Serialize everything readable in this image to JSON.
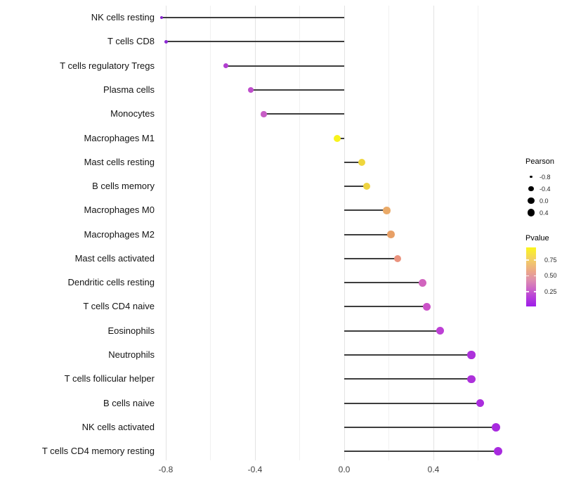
{
  "chart_data": {
    "type": "scatter",
    "variant": "lollipop",
    "title": "",
    "xlabel": "",
    "ylabel": "",
    "grid": true,
    "legend_position": "right",
    "x_axis": {
      "major_ticks": [
        -0.8,
        -0.4,
        0.0,
        0.4
      ],
      "major_tick_labels": [
        "-0.8",
        "-0.4",
        "0.0",
        "0.4"
      ],
      "minor_ticks": [
        -0.6,
        -0.2,
        0.2,
        0.6
      ],
      "range": [
        -0.85,
        0.72
      ]
    },
    "rows": [
      {
        "category": "NK cells resting",
        "pearson": -0.82,
        "pvalue": 0.01,
        "color": "#8826CF",
        "diameter": 4
      },
      {
        "category": "T cells CD8",
        "pearson": -0.8,
        "pvalue": 0.02,
        "color": "#8C2AD3",
        "diameter": 5
      },
      {
        "category": "T cells regulatory  Tregs",
        "pearson": -0.53,
        "pvalue": 0.12,
        "color": "#B13DD0",
        "diameter": 7.5
      },
      {
        "category": "Plasma cells",
        "pearson": -0.42,
        "pvalue": 0.17,
        "color": "#BF4ECC",
        "diameter": 8
      },
      {
        "category": "Monocytes",
        "pearson": -0.36,
        "pvalue": 0.22,
        "color": "#C75DC5",
        "diameter": 8.5
      },
      {
        "category": "Macrophages M1",
        "pearson": -0.03,
        "pvalue": 0.93,
        "color": "#F8F31D",
        "diameter": 10
      },
      {
        "category": "Mast cells resting",
        "pearson": 0.08,
        "pvalue": 0.82,
        "color": "#EFD63C",
        "diameter": 10
      },
      {
        "category": "B cells memory",
        "pearson": 0.1,
        "pvalue": 0.81,
        "color": "#EED341",
        "diameter": 10.5
      },
      {
        "category": "Macrophages M0",
        "pearson": 0.19,
        "pvalue": 0.62,
        "color": "#EAAA68",
        "diameter": 10.5
      },
      {
        "category": "Macrophages M2",
        "pearson": 0.21,
        "pvalue": 0.6,
        "color": "#E8A066",
        "diameter": 10.5
      },
      {
        "category": "Mast cells activated",
        "pearson": 0.24,
        "pvalue": 0.55,
        "color": "#EA937E",
        "diameter": 10.5
      },
      {
        "category": "Dendritic cells resting",
        "pearson": 0.35,
        "pvalue": 0.28,
        "color": "#D164BE",
        "diameter": 11
      },
      {
        "category": "T cells CD4 naive",
        "pearson": 0.37,
        "pvalue": 0.24,
        "color": "#CB52C8",
        "diameter": 11
      },
      {
        "category": "Eosinophils",
        "pearson": 0.43,
        "pvalue": 0.15,
        "color": "#BD40D5",
        "diameter": 11.5
      },
      {
        "category": "Neutrophils",
        "pearson": 0.57,
        "pvalue": 0.08,
        "color": "#AD31DB",
        "diameter": 11.5
      },
      {
        "category": "T cells follicular helper",
        "pearson": 0.57,
        "pvalue": 0.08,
        "color": "#AD31DB",
        "diameter": 11.5
      },
      {
        "category": "B cells naive",
        "pearson": 0.61,
        "pvalue": 0.06,
        "color": "#AA2DDD",
        "diameter": 11.5
      },
      {
        "category": "NK cells activated",
        "pearson": 0.68,
        "pvalue": 0.04,
        "color": "#A82ADF",
        "diameter": 12.5
      },
      {
        "category": "T cells CD4 memory resting",
        "pearson": 0.69,
        "pvalue": 0.04,
        "color": "#A82ADF",
        "diameter": 12.5
      }
    ]
  },
  "legends": {
    "pearson": {
      "title": "Pearson",
      "dot_color": "#000000",
      "entries": [
        {
          "label": "-0.8",
          "diameter": 3.5
        },
        {
          "label": "-0.4",
          "diameter": 7.5
        },
        {
          "label": "0.0",
          "diameter": 9.5
        },
        {
          "label": "0.4",
          "diameter": 10.5
        }
      ]
    },
    "pvalue": {
      "title": "Pvalue",
      "tick_labels": [
        "0.75",
        "0.50",
        "0.25"
      ],
      "tick_values": [
        0.75,
        0.5,
        0.25
      ],
      "range_top": 0.95,
      "range_bottom": 0.02,
      "gradient_stops": [
        "#FBF51C 0%",
        "#F3D163 20%",
        "#ECA887 40%",
        "#DE8FAE 55%",
        "#CD67C6 70%",
        "#B53BDB 85%",
        "#9D1EE9 100%"
      ]
    }
  },
  "colors": {
    "background": "#FFFFFF",
    "stem": "#3D3D3D",
    "grid_major": "#E3E3E3",
    "grid_minor": "#F1F1F1",
    "axis_text": "#404040",
    "category_text": "#141414"
  }
}
